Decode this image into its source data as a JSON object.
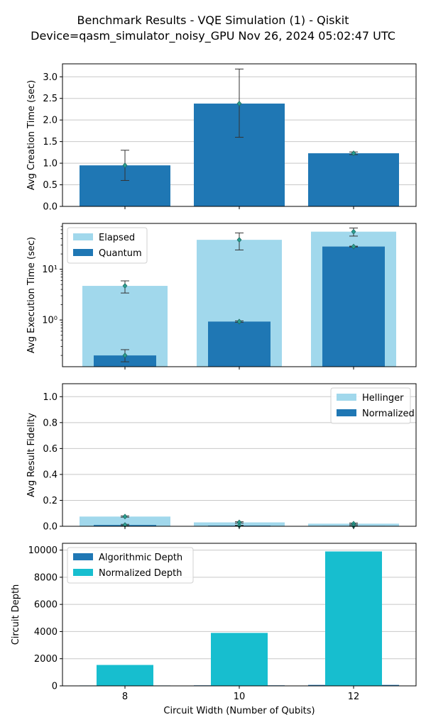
{
  "figure": {
    "title_line1": "Benchmark Results - VQE Simulation (1) - Qiskit",
    "title_line2": "Device=qasm_simulator_noisy_GPU  Nov 26, 2024 05:02:47 UTC",
    "shared_xlabel": "Circuit Width (Number of Qubits)"
  },
  "colors": {
    "dark_blue": "#1f77b4",
    "light_blue": "#a1d8ec",
    "cyan": "#17becf",
    "marker": "#2a9d8f",
    "grid": "#c8c8c8"
  },
  "chart_data": [
    {
      "type": "bar",
      "ylabel": "Avg Creation Time (sec)",
      "categories": [
        "8",
        "10",
        "12"
      ],
      "ylim": [
        0,
        3.3
      ],
      "yticks": [
        0.0,
        0.5,
        1.0,
        1.5,
        2.0,
        2.5,
        3.0
      ],
      "ytick_labels": [
        "0.0",
        "0.5",
        "1.0",
        "1.5",
        "2.0",
        "2.5",
        "3.0"
      ],
      "grid": true,
      "series": [
        {
          "values": [
            0.95,
            2.38,
            1.23
          ],
          "error_low": [
            0.6,
            1.6,
            1.2
          ],
          "error_high": [
            1.3,
            3.18,
            1.26
          ]
        }
      ]
    },
    {
      "type": "bar",
      "ylabel": "Avg Execution Time (sec)",
      "yscale": "log",
      "categories": [
        "8",
        "10",
        "12"
      ],
      "ylim": [
        0.12,
        80
      ],
      "yticks": [
        1,
        10
      ],
      "ytick_labels": [
        "10⁰",
        "10¹"
      ],
      "legend_position": "top-left",
      "grid": false,
      "series": [
        {
          "name": "Elapsed",
          "values": [
            4.7,
            38,
            55
          ],
          "error_low": [
            3.4,
            24,
            45
          ],
          "error_high": [
            5.9,
            52,
            65
          ]
        },
        {
          "name": "Quantum",
          "values": [
            0.2,
            0.93,
            28
          ],
          "error_low": [
            0.15,
            0.9,
            27.5
          ],
          "error_high": [
            0.26,
            0.96,
            28.5
          ]
        }
      ]
    },
    {
      "type": "bar",
      "ylabel": "Avg Result Fidelity",
      "categories": [
        "8",
        "10",
        "12"
      ],
      "ylim": [
        0,
        1.1
      ],
      "yticks": [
        0.0,
        0.2,
        0.4,
        0.6,
        0.8,
        1.0
      ],
      "ytick_labels": [
        "0.0",
        "0.2",
        "0.4",
        "0.6",
        "0.8",
        "1.0"
      ],
      "legend_position": "top-right",
      "grid": true,
      "series": [
        {
          "name": "Hellinger",
          "values": [
            0.075,
            0.03,
            0.02
          ],
          "error_low": [
            0.07,
            0.025,
            0.015
          ],
          "error_high": [
            0.08,
            0.035,
            0.025
          ]
        },
        {
          "name": "Normalized",
          "values": [
            0.01,
            0.005,
            0.003
          ],
          "error_low": [
            0.005,
            0.002,
            0.001
          ],
          "error_high": [
            0.015,
            0.008,
            0.005
          ]
        }
      ]
    },
    {
      "type": "bar",
      "ylabel": "Circuit Depth",
      "xlabel": "Circuit Width (Number of Qubits)",
      "categories": [
        "8",
        "10",
        "12"
      ],
      "ylim": [
        0,
        10500
      ],
      "yticks": [
        0,
        2000,
        4000,
        6000,
        8000,
        10000
      ],
      "ytick_labels": [
        "0",
        "2000",
        "4000",
        "6000",
        "8000",
        "10000"
      ],
      "legend_position": "top-left",
      "grid": true,
      "series": [
        {
          "name": "Algorithmic Depth",
          "values": [
            30,
            40,
            70
          ]
        },
        {
          "name": "Normalized Depth",
          "values": [
            1540,
            3900,
            9900
          ]
        }
      ]
    }
  ]
}
